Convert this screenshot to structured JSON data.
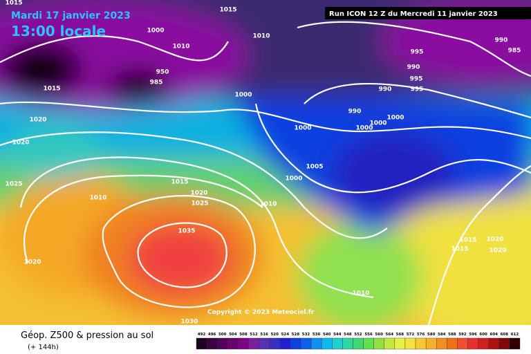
{
  "header": {
    "date": "Mardi 17 janvier 2023",
    "time": "13:00 locale",
    "run": "Run ICON 12 Z du Mercredi 11 janvier 2023"
  },
  "isobar_labels": [
    "1015",
    "1015",
    "1000",
    "1010",
    "1010",
    "950",
    "985",
    "1015",
    "1000",
    "995",
    "990",
    "985",
    "990",
    "995",
    "990",
    "995",
    "990",
    "1000",
    "1000",
    "1000",
    "1000",
    "1020",
    "1020",
    "1005",
    "1000",
    "1015",
    "1025",
    "1020",
    "1010",
    "1025",
    "1010",
    "1035",
    "1015",
    "1020",
    "1015",
    "1020",
    "1020",
    "1010",
    "1030"
  ],
  "copyright": "Copyright © 2023 Meteociel.fr",
  "footer": {
    "title": "Géop. Z500 & pression au sol",
    "lead": "(+ 144h)"
  },
  "colorbar": {
    "labels": [
      492,
      496,
      500,
      504,
      508,
      512,
      516,
      520,
      524,
      528,
      532,
      536,
      540,
      544,
      548,
      552,
      556,
      560,
      564,
      568,
      572,
      576,
      580,
      584,
      588,
      592,
      596,
      600,
      604,
      608,
      612
    ]
  }
}
